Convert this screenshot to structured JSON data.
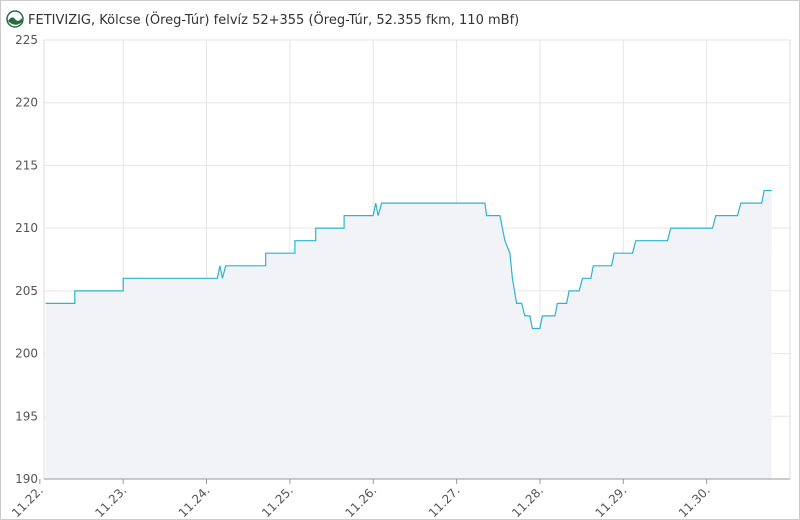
{
  "chart_data": {
    "type": "area",
    "title": "FETIVIZIG, Kölcse (Öreg-Túr) felvíz 52+355 (Öreg-Túr, 52.355 fkm, 110 mBf)",
    "x": [
      0.07,
      0.42,
      0.42,
      1.0,
      1.0,
      2.13,
      2.16,
      2.19,
      2.23,
      2.71,
      2.71,
      3.06,
      3.06,
      3.31,
      3.31,
      3.65,
      3.65,
      4.0,
      4.03,
      4.06,
      4.1,
      5.34,
      5.36,
      5.52,
      5.58,
      5.64,
      5.67,
      5.72,
      5.78,
      5.82,
      5.88,
      5.91,
      6.0,
      6.03,
      6.18,
      6.21,
      6.32,
      6.35,
      6.47,
      6.51,
      6.61,
      6.64,
      6.86,
      6.89,
      7.11,
      7.15,
      7.53,
      7.57,
      8.07,
      8.11,
      8.37,
      8.41,
      8.66,
      8.69,
      8.78
    ],
    "series": [
      {
        "color": "#2bb5cf",
        "values": [
          204,
          204,
          205,
          205,
          206,
          206,
          207,
          206,
          207,
          207,
          208,
          208,
          209,
          209,
          210,
          210,
          211,
          211,
          212,
          211,
          212,
          212,
          211,
          211,
          209,
          208,
          206,
          204,
          204,
          203,
          203,
          202,
          202,
          203,
          203,
          204,
          204,
          205,
          205,
          206,
          206,
          207,
          207,
          208,
          208,
          209,
          209,
          210,
          210,
          211,
          211,
          212,
          212,
          213,
          213
        ]
      }
    ],
    "fill": "#f2f3f7",
    "xlim": [
      0.05,
      9.0
    ],
    "xticks": [
      {
        "value": 0,
        "label": "11.22."
      },
      {
        "value": 1,
        "label": "11.23."
      },
      {
        "value": 2,
        "label": "11.24."
      },
      {
        "value": 3,
        "label": "11.25."
      },
      {
        "value": 4,
        "label": "11.26."
      },
      {
        "value": 5,
        "label": "11.27."
      },
      {
        "value": 6,
        "label": "11.28."
      },
      {
        "value": 7,
        "label": "11.29."
      },
      {
        "value": 8,
        "label": "11.30."
      }
    ],
    "ylim": [
      190,
      225
    ],
    "yticks": [
      190,
      195,
      200,
      205,
      210,
      215,
      220,
      225
    ],
    "grid": true
  }
}
